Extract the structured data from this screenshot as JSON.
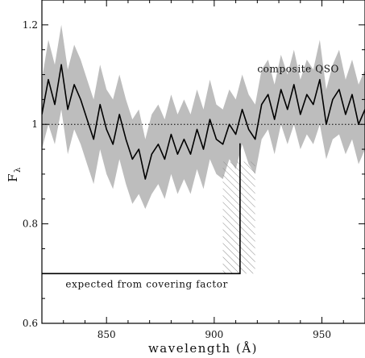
{
  "chart_data": {
    "type": "line",
    "title": "",
    "xlabel": "wavelength (Å)",
    "ylabel": "F",
    "ylabel_subscript": "λ",
    "xlim": [
      820,
      970
    ],
    "ylim": [
      0.6,
      1.25
    ],
    "xticks": [
      850,
      900,
      950
    ],
    "yticks": [
      0.6,
      0.8,
      1,
      1.2
    ],
    "reference_line": {
      "y": 1,
      "style": "dotted"
    },
    "annotations": [
      {
        "text": "composite QSO",
        "x": 920,
        "y": 1.105
      },
      {
        "text": "expected from covering factor",
        "x": 831,
        "y": 0.672
      }
    ],
    "series": [
      {
        "style": "solid",
        "color": "#000000",
        "x": [
          820,
          823,
          826,
          829,
          832,
          835,
          838,
          841,
          844,
          847,
          850,
          853,
          856,
          859,
          862,
          865,
          868,
          871,
          874,
          877,
          880,
          883,
          886,
          889,
          892,
          895,
          898,
          901,
          904,
          907,
          910,
          913,
          916,
          919,
          922,
          925,
          928,
          931,
          934,
          937,
          940,
          943,
          946,
          949,
          952,
          955,
          958,
          961,
          964,
          967,
          970
        ],
        "y": [
          1.02,
          1.09,
          1.04,
          1.12,
          1.03,
          1.08,
          1.05,
          1.01,
          0.97,
          1.04,
          0.99,
          0.96,
          1.02,
          0.97,
          0.93,
          0.95,
          0.89,
          0.94,
          0.96,
          0.93,
          0.98,
          0.94,
          0.97,
          0.94,
          0.99,
          0.95,
          1.01,
          0.97,
          0.96,
          1.0,
          0.98,
          1.03,
          0.99,
          0.97,
          1.04,
          1.06,
          1.01,
          1.07,
          1.03,
          1.08,
          1.02,
          1.06,
          1.04,
          1.09,
          1.0,
          1.05,
          1.07,
          1.02,
          1.06,
          1.0,
          1.03
        ]
      },
      {
        "style": "band",
        "color": "#bdbdbd",
        "x": [
          820,
          823,
          826,
          829,
          832,
          835,
          838,
          841,
          844,
          847,
          850,
          853,
          856,
          859,
          862,
          865,
          868,
          871,
          874,
          877,
          880,
          883,
          886,
          889,
          892,
          895,
          898,
          901,
          904,
          907,
          910,
          913,
          916,
          919,
          922,
          925,
          928,
          931,
          934,
          937,
          940,
          943,
          946,
          949,
          952,
          955,
          958,
          961,
          964,
          967,
          970
        ],
        "lower": [
          0.95,
          1.0,
          0.96,
          1.03,
          0.94,
          0.99,
          0.96,
          0.92,
          0.88,
          0.95,
          0.9,
          0.87,
          0.93,
          0.88,
          0.84,
          0.86,
          0.83,
          0.86,
          0.88,
          0.85,
          0.9,
          0.86,
          0.89,
          0.86,
          0.91,
          0.87,
          0.93,
          0.9,
          0.89,
          0.93,
          0.91,
          0.96,
          0.92,
          0.9,
          0.97,
          0.99,
          0.94,
          1.0,
          0.96,
          1.0,
          0.95,
          0.98,
          0.96,
          1.0,
          0.93,
          0.97,
          0.98,
          0.94,
          0.97,
          0.92,
          0.95
        ],
        "upper": [
          1.09,
          1.17,
          1.12,
          1.2,
          1.11,
          1.16,
          1.13,
          1.09,
          1.05,
          1.12,
          1.07,
          1.05,
          1.1,
          1.05,
          1.01,
          1.03,
          0.97,
          1.02,
          1.04,
          1.01,
          1.06,
          1.02,
          1.05,
          1.02,
          1.07,
          1.03,
          1.09,
          1.04,
          1.03,
          1.07,
          1.05,
          1.1,
          1.06,
          1.04,
          1.11,
          1.13,
          1.08,
          1.14,
          1.1,
          1.15,
          1.09,
          1.13,
          1.11,
          1.17,
          1.07,
          1.12,
          1.15,
          1.09,
          1.13,
          1.08,
          1.11
        ]
      },
      {
        "style": "step",
        "color": "#000000",
        "x": [
          820,
          912,
          912
        ],
        "y": [
          0.7,
          0.7,
          0.962
        ]
      },
      {
        "style": "hatched-region",
        "color": "#888888",
        "x": [
          904,
          919
        ],
        "y": [
          0.7,
          0.925
        ]
      }
    ]
  }
}
